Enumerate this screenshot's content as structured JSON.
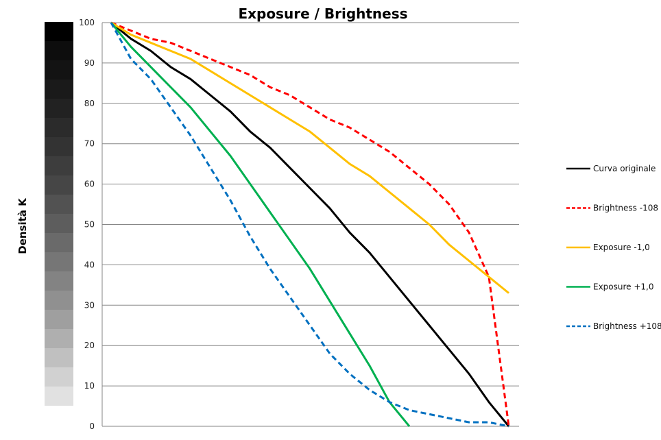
{
  "chart_data": {
    "type": "line",
    "title": "Exposure / Brightness",
    "xlabel": "",
    "ylabel": "Densità K",
    "ylim": [
      0,
      100
    ],
    "yticks": [
      0,
      10,
      20,
      30,
      40,
      50,
      60,
      70,
      80,
      90,
      100
    ],
    "grid": true,
    "legend_position": "right",
    "x": [
      0,
      1,
      2,
      3,
      4,
      5,
      6,
      7,
      8,
      9,
      10,
      11,
      12,
      13,
      14,
      15,
      16,
      17,
      18,
      19,
      20
    ],
    "series": [
      {
        "name": "Curva originale",
        "color": "#000000",
        "dash": false,
        "values": [
          100,
          96,
          93,
          89,
          86,
          82,
          78,
          73,
          69,
          64,
          59,
          54,
          48,
          43,
          37,
          31,
          25,
          19,
          13,
          6,
          0
        ]
      },
      {
        "name": "Brightness  -108",
        "color": "#ff0000",
        "dash": true,
        "values": [
          100,
          98,
          96,
          95,
          93,
          91,
          89,
          87,
          84,
          82,
          79,
          76,
          74,
          71,
          68,
          64,
          60,
          55,
          48,
          37,
          0
        ]
      },
      {
        "name": "Exposure  -1,0",
        "color": "#ffc000",
        "dash": false,
        "values": [
          100,
          97,
          95,
          93,
          91,
          88,
          85,
          82,
          79,
          76,
          73,
          69,
          65,
          62,
          58,
          54,
          50,
          45,
          41,
          37,
          33
        ]
      },
      {
        "name": "Exposure  +1,0",
        "color": "#00b050",
        "dash": false,
        "values": [
          100,
          94,
          89,
          84,
          79,
          73,
          67,
          60,
          53,
          46,
          39,
          31,
          23,
          15,
          6,
          0
        ]
      },
      {
        "name": "Brightness  +108",
        "color": "#0070c0",
        "dash": true,
        "values": [
          100,
          91,
          86,
          79,
          72,
          64,
          56,
          47,
          39,
          32,
          25,
          18,
          13,
          9,
          6,
          4,
          3,
          2,
          1,
          1,
          0
        ]
      }
    ],
    "density_scale": {
      "steps": 20,
      "colors": [
        "#000000",
        "#0d0d0d",
        "#131313",
        "#1a1a1a",
        "#222222",
        "#2b2b2b",
        "#333333",
        "#3d3d3d",
        "#464646",
        "#525252",
        "#5d5d5d",
        "#6a6a6a",
        "#767676",
        "#838383",
        "#909090",
        "#9f9f9f",
        "#afafaf",
        "#c0c0c0",
        "#d1d1d1",
        "#e1e1e1",
        "#efefef"
      ]
    }
  }
}
